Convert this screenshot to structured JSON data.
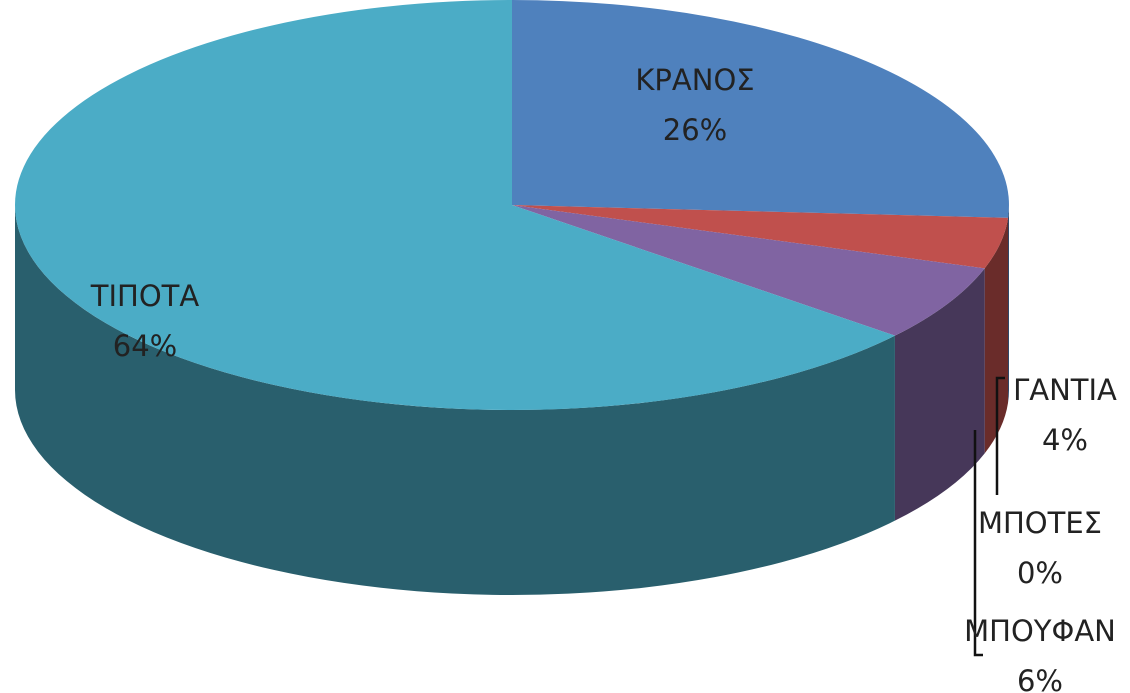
{
  "chart_data": {
    "type": "pie",
    "categories": [
      "ΚΡΑΝΟΣ",
      "ΓΑΝΤΙΑ",
      "ΜΠΟΤΕΣ",
      "ΜΠΟΥΦΑΝ",
      "ΤΙΠΟΤΑ"
    ],
    "values": [
      26,
      4,
      0,
      6,
      64
    ],
    "value_labels": [
      "26%",
      "4%",
      "0%",
      "6%",
      "64%"
    ],
    "colors": [
      "#4f81bd",
      "#c0504d",
      "#9bbb59",
      "#8064a2",
      "#4bacc6"
    ]
  }
}
